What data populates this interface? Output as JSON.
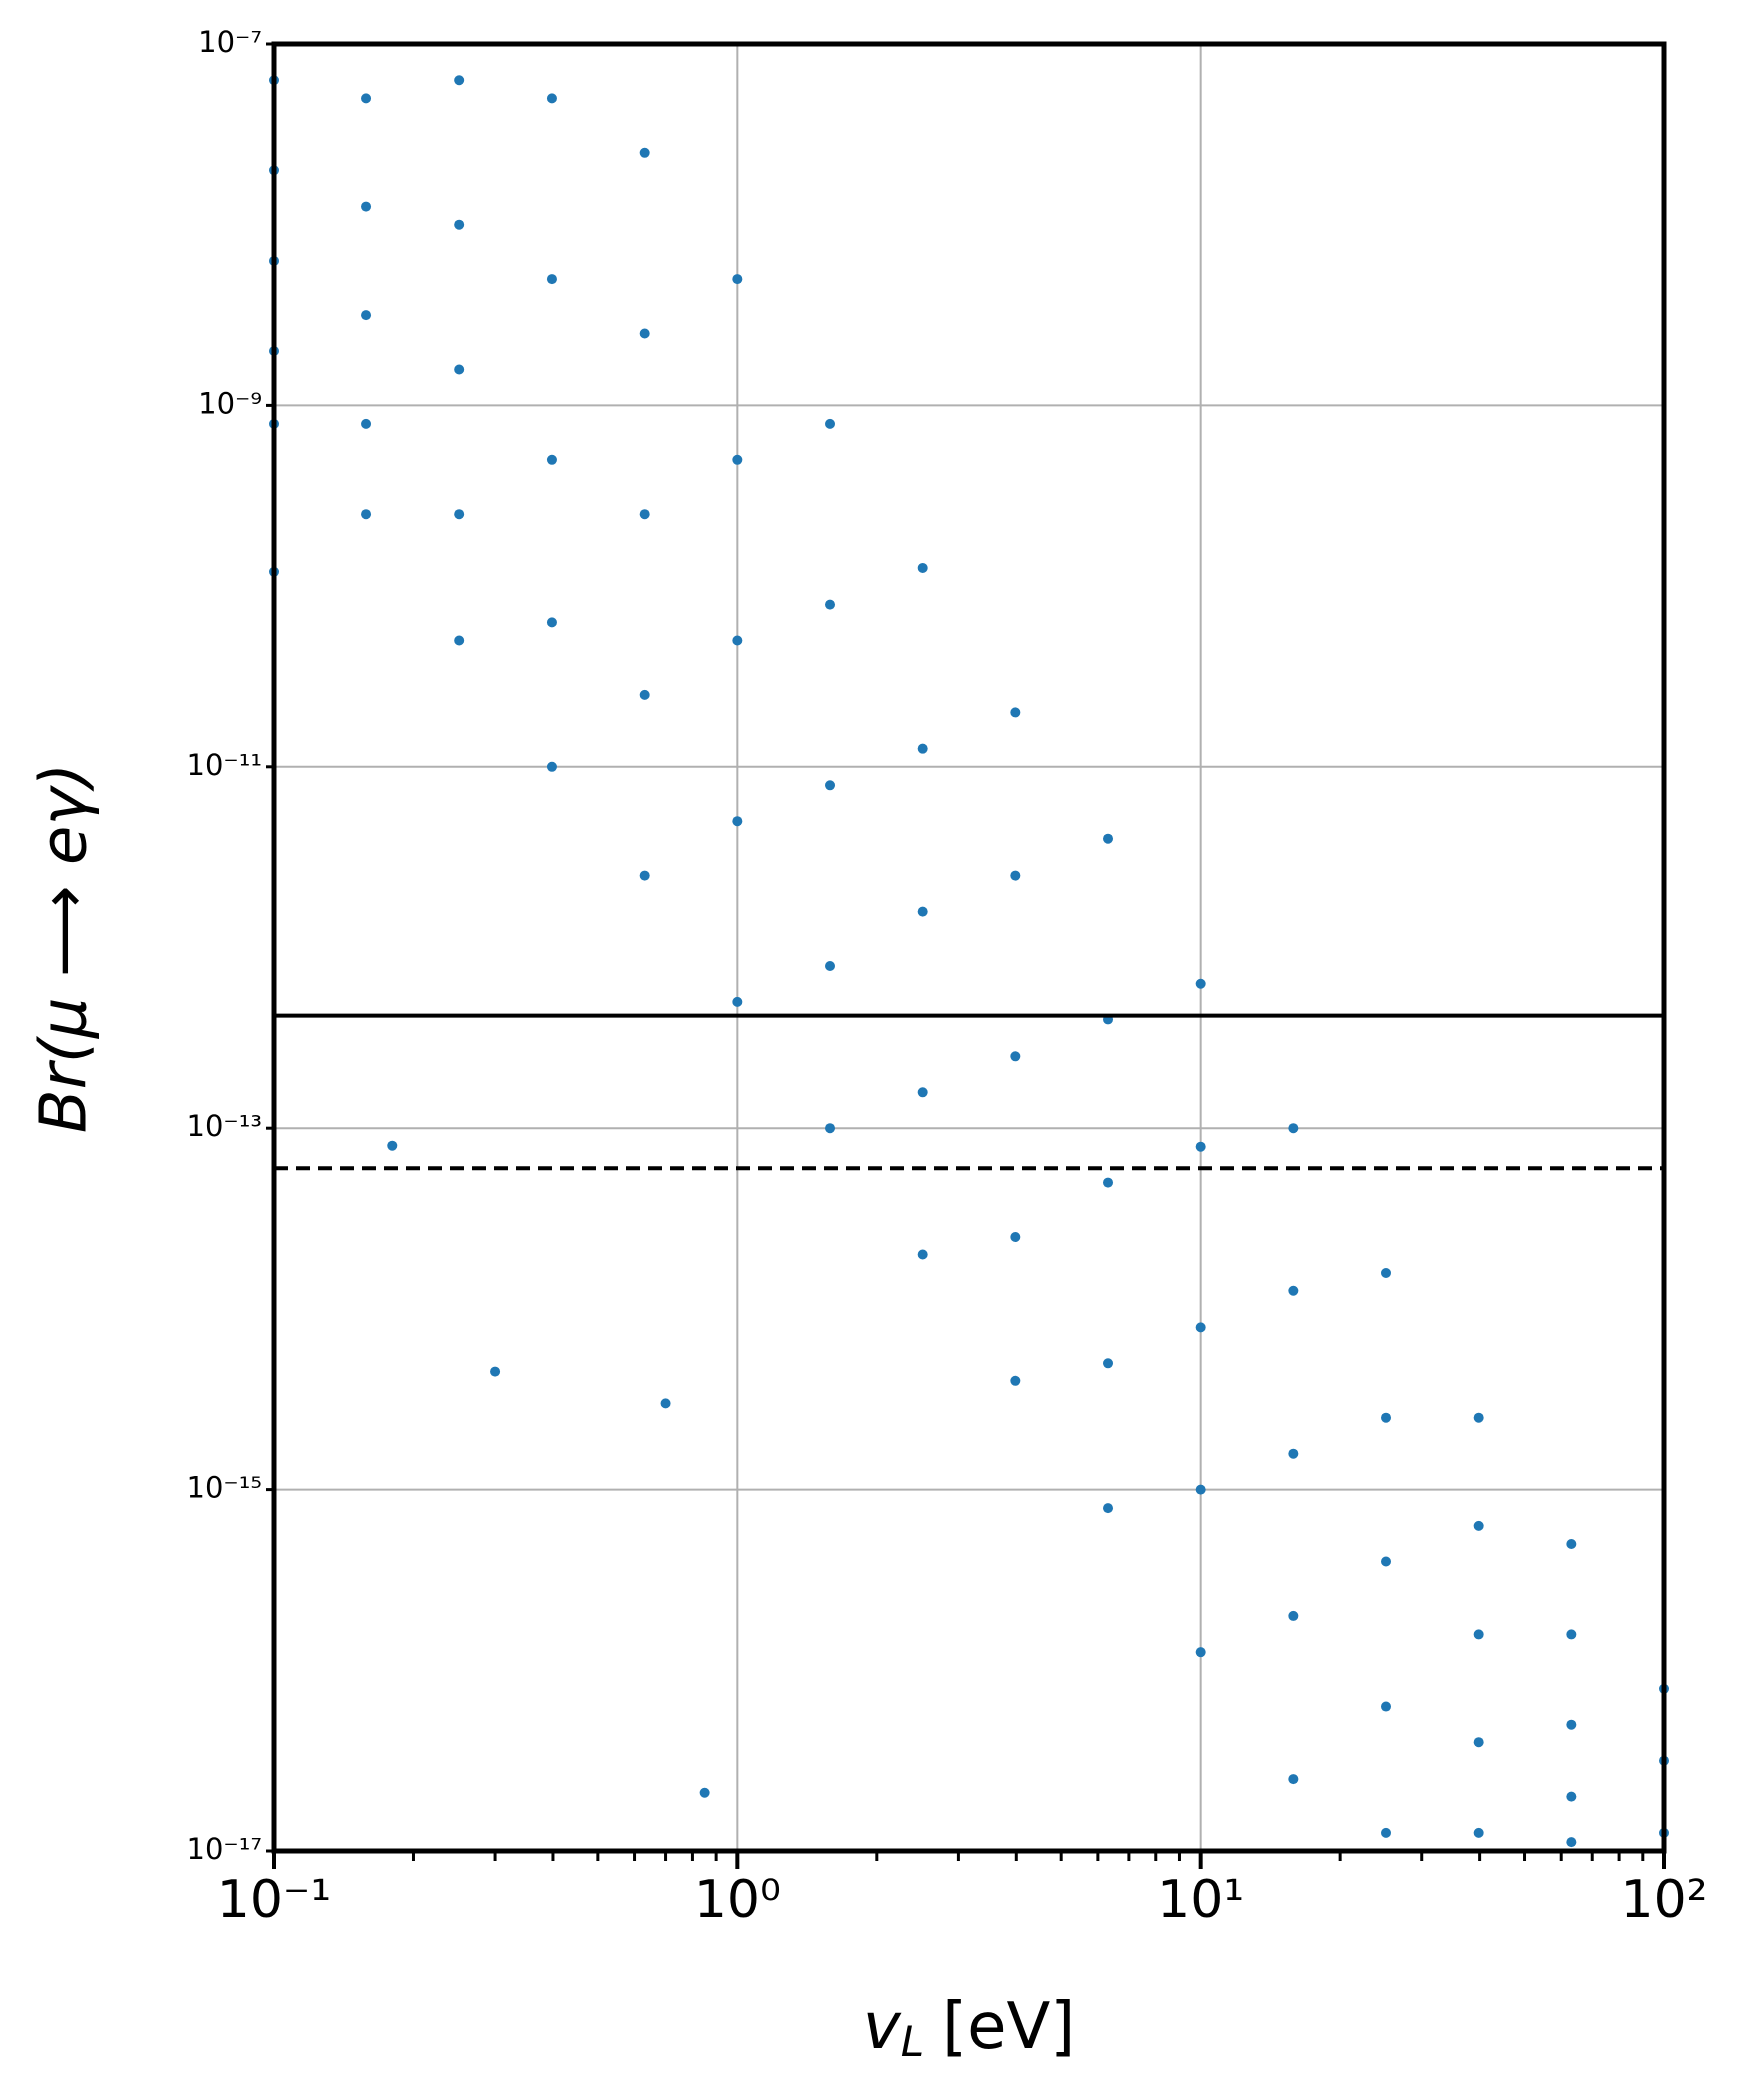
{
  "chart_data": {
    "type": "scatter",
    "xlabel": {
      "symbol": "v",
      "subscript": "L",
      "unit": "[eV]"
    },
    "ylabel": "Br(μ ⟶ eγ)",
    "xscale": "log",
    "yscale": "log",
    "grid": true,
    "xlim": [
      0.1,
      100
    ],
    "ylim": [
      1e-17,
      1e-07
    ],
    "xticks": [
      {
        "value": 0.1,
        "label": "10⁻¹"
      },
      {
        "value": 1,
        "label": "10⁰"
      },
      {
        "value": 10,
        "label": "10¹"
      },
      {
        "value": 100,
        "label": "10²"
      }
    ],
    "xminorticks": [
      0.2,
      0.3,
      0.4,
      0.5,
      0.6,
      0.7,
      0.8,
      0.9,
      2,
      3,
      4,
      5,
      6,
      7,
      8,
      9,
      20,
      30,
      40,
      50,
      60,
      70,
      80,
      90
    ],
    "yticks": [
      {
        "value": 1e-17,
        "label": "10⁻¹⁷"
      },
      {
        "value": 1e-15,
        "label": "10⁻¹⁵"
      },
      {
        "value": 1e-13,
        "label": "10⁻¹³"
      },
      {
        "value": 1e-11,
        "label": "10⁻¹¹"
      },
      {
        "value": 1e-09,
        "label": "10⁻⁹"
      },
      {
        "value": 1e-07,
        "label": "10⁻⁷"
      }
    ],
    "hlines": [
      {
        "value": 4.2e-13,
        "style": "solid",
        "color": "#000000"
      },
      {
        "value": 6e-14,
        "style": "dashed",
        "color": "#000000"
      }
    ],
    "series": [
      {
        "color": "#1f77b4",
        "x": [
          0.1,
          0.1,
          0.1,
          0.1,
          0.1,
          0.158,
          0.158,
          0.158,
          0.158,
          0.158,
          0.251,
          0.251,
          0.251,
          0.251,
          0.251,
          0.398,
          0.398,
          0.398,
          0.398,
          0.398,
          0.631,
          0.631,
          0.631,
          0.631,
          0.631,
          1,
          1,
          1,
          1,
          1,
          1.585,
          1.585,
          1.585,
          1.585,
          1.585,
          2.512,
          2.512,
          2.512,
          2.512,
          2.512,
          3.981,
          3.981,
          3.981,
          3.981,
          3.981,
          6.31,
          6.31,
          6.31,
          6.31,
          6.31,
          10,
          10,
          10,
          10,
          10,
          15.85,
          15.85,
          15.85,
          15.85,
          15.85,
          25.12,
          25.12,
          25.12,
          25.12,
          25.12,
          39.81,
          39.81,
          39.81,
          39.81,
          39.81,
          63.1,
          63.1,
          63.1,
          63.1,
          63.1,
          100,
          100,
          100,
          0.3,
          0.85,
          0.18,
          0.1,
          0.7
        ],
        "y": [
          6.3e-08,
          2e-08,
          6.3e-09,
          2e-09,
          7.9e-10,
          5e-08,
          1.26e-08,
          3.16e-09,
          7.9e-10,
          2.5e-10,
          6.3e-08,
          1e-08,
          1.58e-09,
          2.5e-10,
          5e-11,
          5e-08,
          5e-09,
          5e-10,
          6.3e-11,
          1e-11,
          2.5e-08,
          2.5e-09,
          2.5e-10,
          2.5e-11,
          2.5e-12,
          5e-09,
          5e-10,
          5e-11,
          5e-12,
          5e-13,
          7.9e-10,
          7.9e-11,
          7.9e-12,
          7.9e-13,
          1e-13,
          1.26e-10,
          1.26e-11,
          1.58e-12,
          1.58e-13,
          2e-14,
          2e-11,
          2.5e-12,
          2.5e-13,
          2.5e-14,
          4e-15,
          4e-12,
          4e-13,
          5e-14,
          5e-15,
          7.9e-16,
          6.3e-13,
          7.9e-14,
          7.9e-15,
          1e-15,
          1.26e-16,
          1e-13,
          1.26e-14,
          1.58e-15,
          2e-16,
          2.5e-17,
          1.58e-14,
          2.5e-15,
          4e-16,
          6.3e-17,
          1.26e-17,
          2.5e-15,
          6.3e-16,
          1.58e-16,
          4e-17,
          1.26e-17,
          5e-16,
          1.58e-16,
          5e-17,
          2e-17,
          1.12e-17,
          7.9e-17,
          3.16e-17,
          1.26e-17,
          4.5e-15,
          2.1e-17,
          8e-14,
          1.2e-10,
          3e-15
        ]
      }
    ]
  }
}
